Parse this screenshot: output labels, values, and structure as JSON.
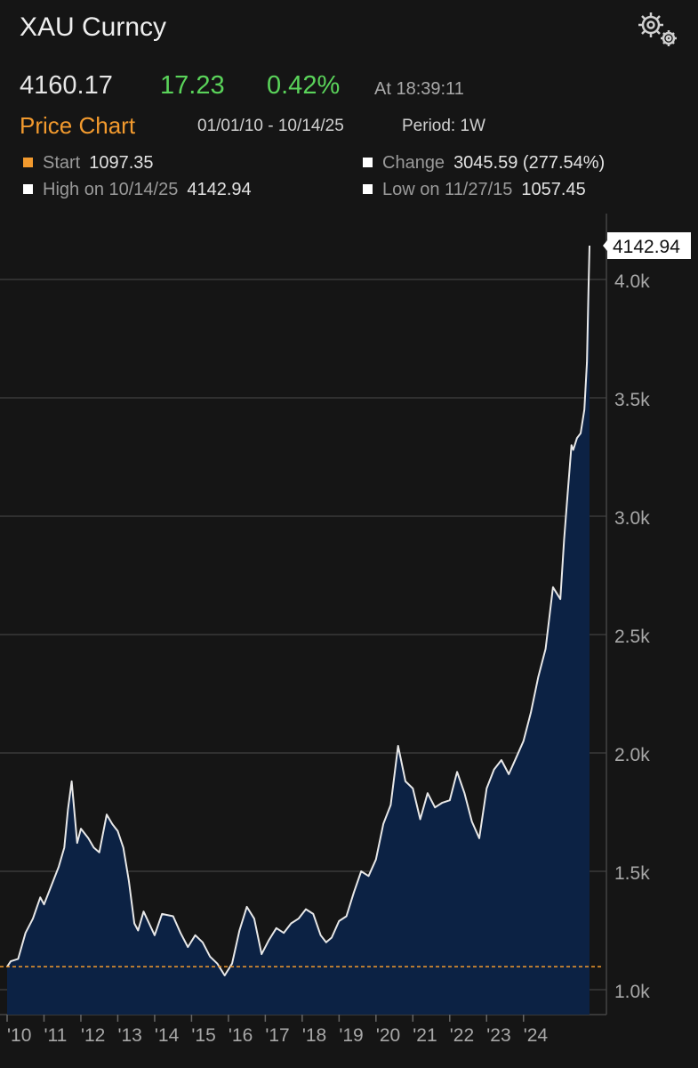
{
  "header": {
    "title": "XAU Curncy",
    "last": "4160.17",
    "net_change": "17.23",
    "pct_change": "0.42%",
    "time": "At 18:39:11"
  },
  "chart_header": {
    "title": "Price Chart",
    "range": "01/01/10 - 10/14/25",
    "period": "Period: 1W"
  },
  "stats": {
    "start_label": "Start",
    "start_value": "1097.35",
    "change_label": "Change",
    "change_value": "3045.59 (277.54%)",
    "high_label": "High on 10/14/25",
    "high_value": "4142.94",
    "low_label": "Low on 11/27/15",
    "low_value": "1057.45"
  },
  "colors": {
    "accent": "#f29a2e",
    "positive": "#5ad35a",
    "fill": "#0c2244",
    "line": "#e8e8e8"
  },
  "chart_data": {
    "type": "area",
    "xlabel": "",
    "ylabel": "",
    "ylim": [
      950,
      4300
    ],
    "yticks": [
      1000,
      1500,
      2000,
      2500,
      3000,
      3500,
      4000
    ],
    "ytick_labels": [
      "1.0k",
      "1.5k",
      "2.0k",
      "2.5k",
      "3.0k",
      "3.5k",
      "4.0k"
    ],
    "xticks": [
      2010,
      2011,
      2012,
      2013,
      2014,
      2015,
      2016,
      2017,
      2018,
      2019,
      2020,
      2021,
      2022,
      2023,
      2024
    ],
    "xtick_labels": [
      "'10",
      "'11",
      "'12",
      "'13",
      "'14",
      "'15",
      "'16",
      "'17",
      "'18",
      "'19",
      "'20",
      "'21",
      "'22",
      "'23",
      "'24"
    ],
    "xlim": [
      2010.0,
      2025.79
    ],
    "reference_line": 1097.35,
    "last_label": "4142.94",
    "grid": true,
    "series": [
      {
        "x": [
          2010.0,
          2010.1,
          2010.3,
          2010.5,
          2010.7,
          2010.9,
          2011.0,
          2011.2,
          2011.4,
          2011.55,
          2011.65,
          2011.75,
          2011.9,
          2012.0,
          2012.2,
          2012.35,
          2012.5,
          2012.7,
          2012.85,
          2013.0,
          2013.15,
          2013.3,
          2013.45,
          2013.55,
          2013.7,
          2013.85,
          2014.0,
          2014.2,
          2014.5,
          2014.7,
          2014.9,
          2015.1,
          2015.3,
          2015.5,
          2015.7,
          2015.9,
          2016.1,
          2016.3,
          2016.5,
          2016.7,
          2016.9,
          2017.1,
          2017.3,
          2017.5,
          2017.7,
          2017.9,
          2018.1,
          2018.3,
          2018.5,
          2018.65,
          2018.8,
          2019.0,
          2019.2,
          2019.4,
          2019.6,
          2019.8,
          2020.0,
          2020.2,
          2020.4,
          2020.6,
          2020.8,
          2021.0,
          2021.2,
          2021.4,
          2021.6,
          2021.8,
          2022.0,
          2022.2,
          2022.4,
          2022.6,
          2022.8,
          2023.0,
          2023.2,
          2023.4,
          2023.6,
          2023.8,
          2024.0,
          2024.2,
          2024.4,
          2024.6,
          2024.8,
          2025.0,
          2025.1,
          2025.2,
          2025.3,
          2025.35,
          2025.45,
          2025.55,
          2025.65,
          2025.72,
          2025.76,
          2025.79
        ],
        "y": [
          1097,
          1120,
          1130,
          1240,
          1300,
          1390,
          1360,
          1440,
          1520,
          1600,
          1760,
          1880,
          1620,
          1680,
          1640,
          1600,
          1580,
          1740,
          1700,
          1670,
          1600,
          1460,
          1280,
          1250,
          1330,
          1280,
          1230,
          1320,
          1310,
          1240,
          1180,
          1230,
          1200,
          1140,
          1110,
          1060,
          1110,
          1250,
          1350,
          1300,
          1150,
          1210,
          1260,
          1240,
          1280,
          1300,
          1340,
          1320,
          1230,
          1200,
          1220,
          1290,
          1310,
          1410,
          1500,
          1480,
          1550,
          1700,
          1780,
          2030,
          1880,
          1850,
          1720,
          1830,
          1770,
          1790,
          1800,
          1920,
          1830,
          1710,
          1640,
          1850,
          1930,
          1970,
          1910,
          1980,
          2050,
          2170,
          2320,
          2440,
          2700,
          2650,
          2900,
          3100,
          3300,
          3280,
          3330,
          3350,
          3450,
          3650,
          3950,
          4142.94
        ]
      }
    ]
  }
}
